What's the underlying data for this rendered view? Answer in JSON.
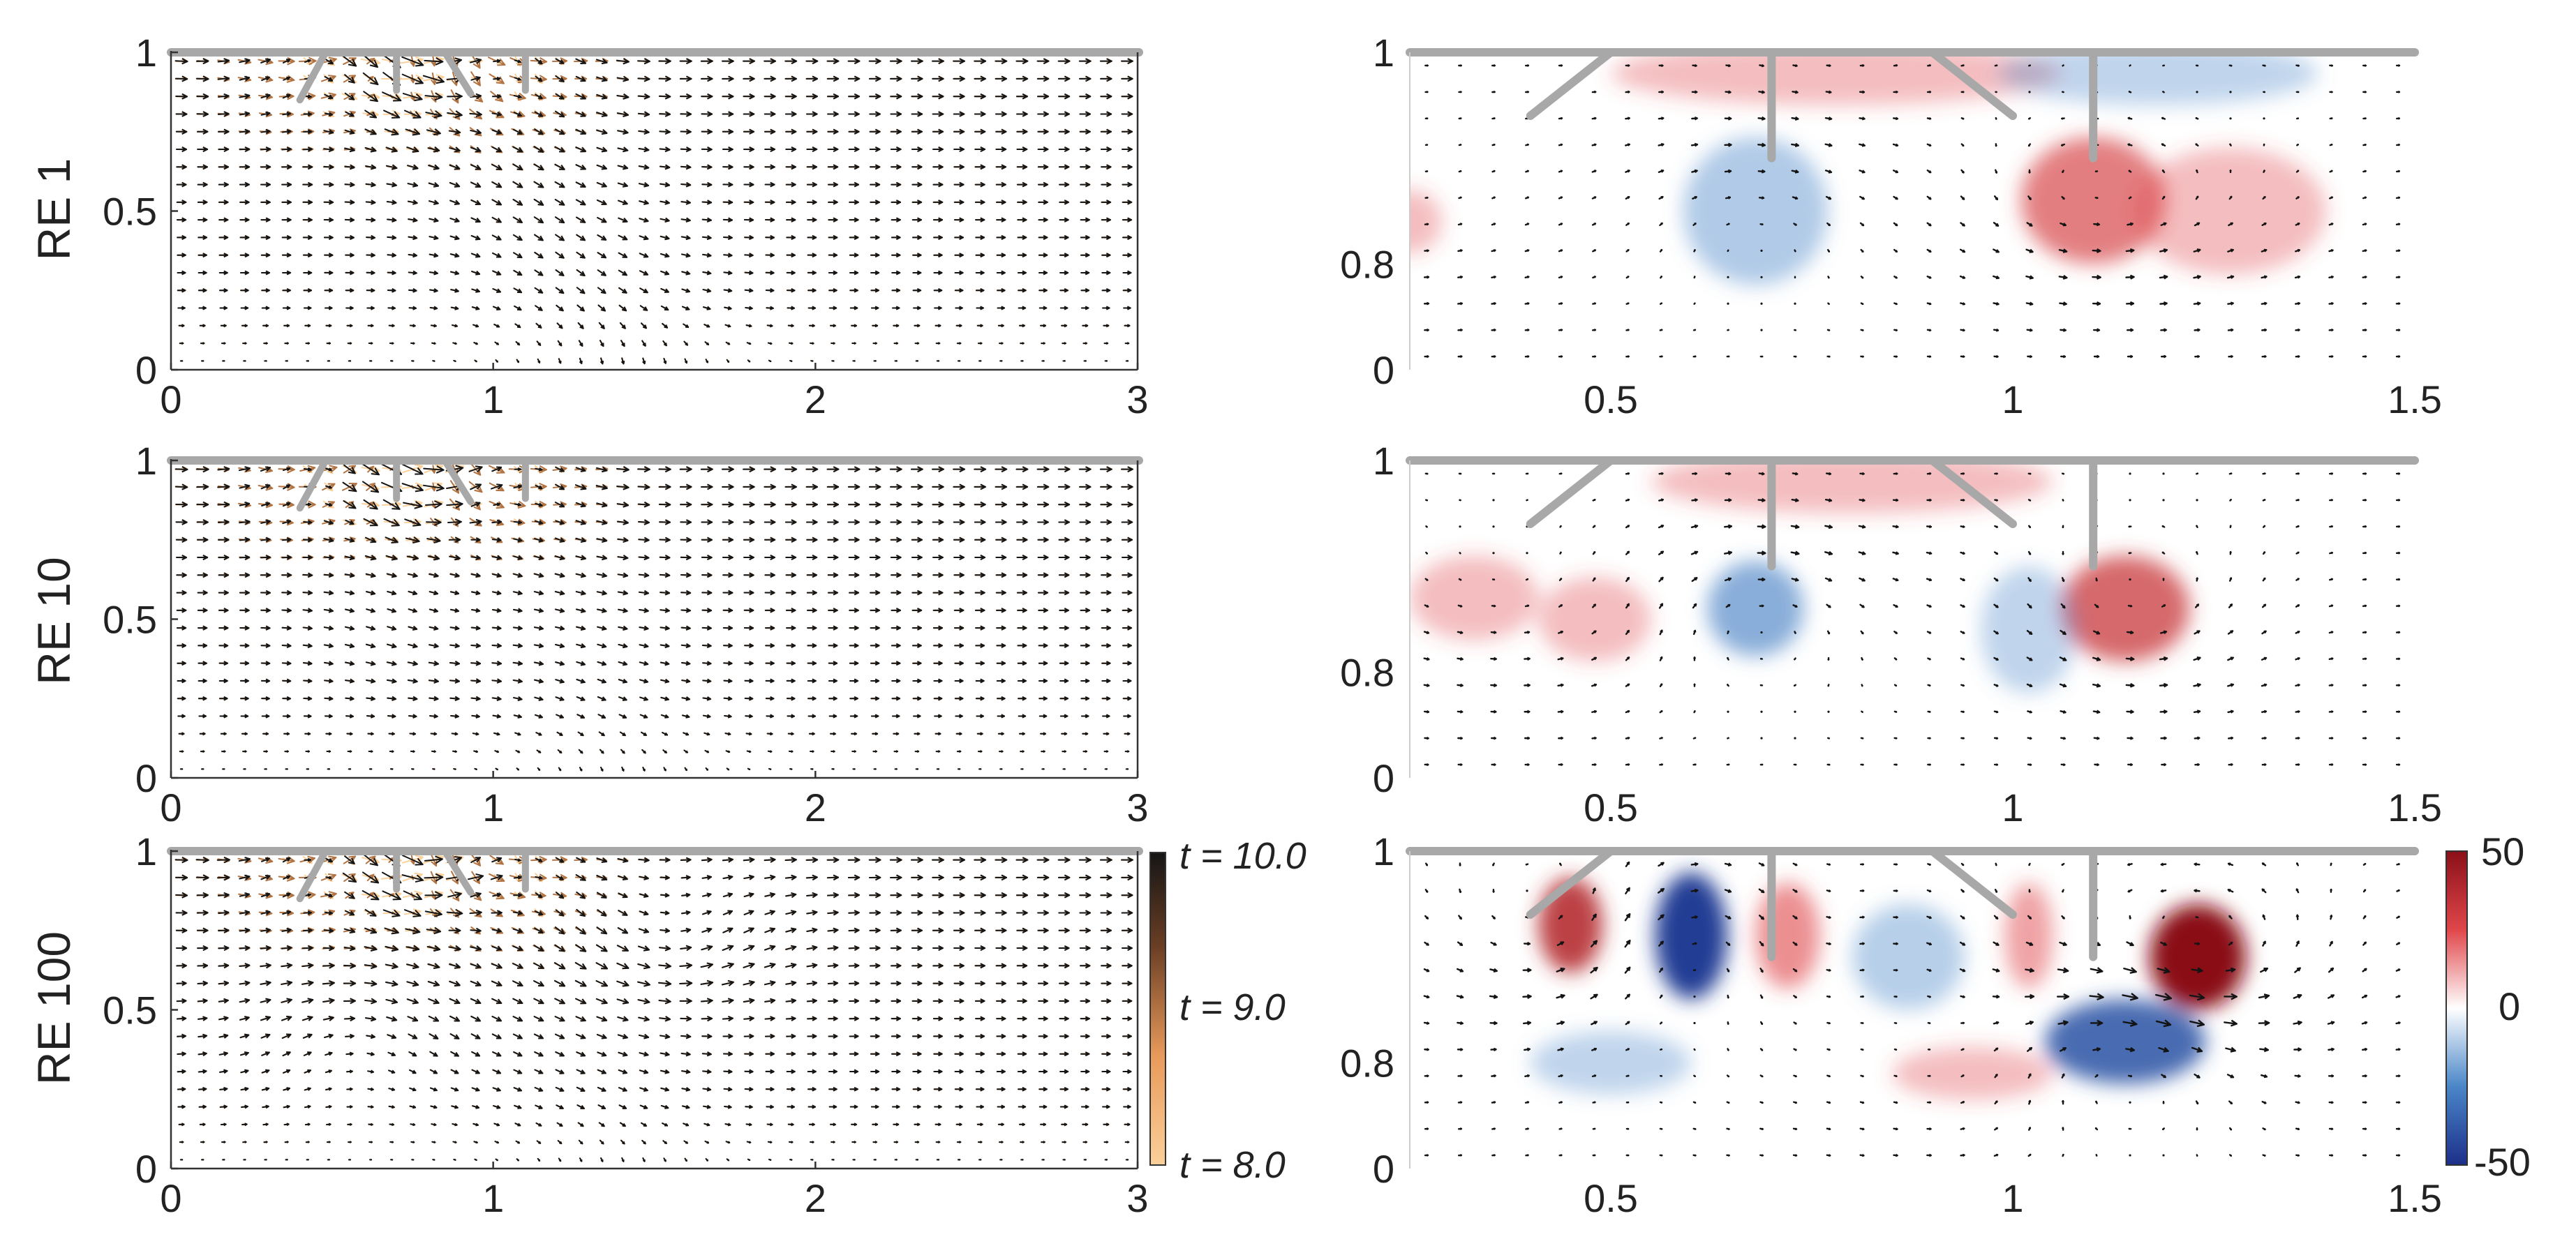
{
  "chart_data": [
    {
      "type": "quiver",
      "row_label": "RE 1",
      "side": "left",
      "xlim": [
        0,
        3
      ],
      "ylim": [
        0,
        1
      ],
      "xticks": [
        "0",
        "1",
        "2",
        "3"
      ],
      "yticks": [
        "0",
        "0.5",
        "1"
      ],
      "color_encoding": "time",
      "flow_regime": "laminar",
      "vortices": []
    },
    {
      "type": "quiver-vorticity",
      "row_label": "RE 1",
      "side": "right",
      "xlim": [
        0.25,
        1.5
      ],
      "ylim": [
        0.7,
        1.0
      ],
      "xticks": [
        "0.5",
        "1",
        "1.5"
      ],
      "yticks": [
        "0",
        "0.8",
        "1"
      ],
      "vortices": [
        {
          "x": 0.68,
          "y": 0.85,
          "strength": -22,
          "rx": 0.09,
          "ry": 0.07
        },
        {
          "x": 1.1,
          "y": 0.86,
          "strength": 34,
          "rx": 0.09,
          "ry": 0.06
        },
        {
          "x": 0.25,
          "y": 0.84,
          "strength": 10,
          "rx": 0.04,
          "ry": 0.03
        },
        {
          "x": 0.78,
          "y": 0.98,
          "strength": 8,
          "rx": 0.28,
          "ry": 0.03
        },
        {
          "x": 1.18,
          "y": 0.98,
          "strength": -8,
          "rx": 0.2,
          "ry": 0.03
        },
        {
          "x": 1.27,
          "y": 0.85,
          "strength": 10,
          "rx": 0.12,
          "ry": 0.06
        }
      ]
    },
    {
      "type": "quiver",
      "row_label": "RE 10",
      "side": "left",
      "xlim": [
        0,
        3
      ],
      "ylim": [
        0,
        1
      ],
      "xticks": [
        "0",
        "1",
        "2",
        "3"
      ],
      "yticks": [
        "0",
        "0.5",
        "1"
      ],
      "color_encoding": "time",
      "flow_regime": "transitional",
      "vortices": [
        {
          "x": 0.85,
          "y": 0.45,
          "strength": 0.6
        }
      ]
    },
    {
      "type": "quiver-vorticity",
      "row_label": "RE 10",
      "side": "right",
      "xlim": [
        0.25,
        1.5
      ],
      "ylim": [
        0.7,
        1.0
      ],
      "xticks": [
        "0.5",
        "1",
        "1.5"
      ],
      "yticks": [
        "0",
        "0.8",
        "1"
      ],
      "vortices": [
        {
          "x": 0.33,
          "y": 0.87,
          "strength": 14,
          "rx": 0.08,
          "ry": 0.04
        },
        {
          "x": 0.68,
          "y": 0.86,
          "strength": -32,
          "rx": 0.06,
          "ry": 0.045
        },
        {
          "x": 1.14,
          "y": 0.86,
          "strength": 38,
          "rx": 0.08,
          "ry": 0.05
        },
        {
          "x": 1.02,
          "y": 0.84,
          "strength": -10,
          "rx": 0.06,
          "ry": 0.06
        },
        {
          "x": 0.48,
          "y": 0.85,
          "strength": 10,
          "rx": 0.07,
          "ry": 0.04
        },
        {
          "x": 0.8,
          "y": 0.98,
          "strength": 6,
          "rx": 0.25,
          "ry": 0.03
        }
      ]
    },
    {
      "type": "quiver",
      "row_label": "RE 100",
      "side": "left",
      "xlim": [
        0,
        3
      ],
      "ylim": [
        0,
        1
      ],
      "xticks": [
        "0",
        "1",
        "2",
        "3"
      ],
      "yticks": [
        "0",
        "0.5",
        "1"
      ],
      "color_encoding": "time",
      "flow_regime": "vortical",
      "vortices": [
        {
          "x": 1.55,
          "y": 0.72,
          "strength": 1.2
        },
        {
          "x": 0.58,
          "y": 0.42,
          "strength": -1.0
        }
      ]
    },
    {
      "type": "quiver-vorticity",
      "row_label": "RE 100",
      "side": "right",
      "xlim": [
        0.25,
        1.5
      ],
      "ylim": [
        0.7,
        1.0
      ],
      "xticks": [
        "0.5",
        "1",
        "1.5"
      ],
      "yticks": [
        "0",
        "0.8",
        "1"
      ],
      "vortices": [
        {
          "x": 0.45,
          "y": 0.93,
          "strength": 45,
          "rx": 0.04,
          "ry": 0.045
        },
        {
          "x": 0.6,
          "y": 0.92,
          "strength": -55,
          "rx": 0.045,
          "ry": 0.06
        },
        {
          "x": 0.72,
          "y": 0.92,
          "strength": 30,
          "rx": 0.04,
          "ry": 0.05
        },
        {
          "x": 0.87,
          "y": 0.9,
          "strength": -20,
          "rx": 0.07,
          "ry": 0.05
        },
        {
          "x": 1.02,
          "y": 0.92,
          "strength": 25,
          "rx": 0.03,
          "ry": 0.05
        },
        {
          "x": 1.23,
          "y": 0.9,
          "strength": 60,
          "rx": 0.06,
          "ry": 0.05
        },
        {
          "x": 1.14,
          "y": 0.82,
          "strength": -45,
          "rx": 0.1,
          "ry": 0.04
        },
        {
          "x": 0.95,
          "y": 0.79,
          "strength": 12,
          "rx": 0.1,
          "ry": 0.025
        },
        {
          "x": 0.5,
          "y": 0.8,
          "strength": -8,
          "rx": 0.1,
          "ry": 0.03
        }
      ]
    }
  ],
  "colorbar_time": {
    "labels": [
      "t = 10.0",
      "t = 9.0",
      "t = 8.0"
    ],
    "colors": [
      "#1a1a1a",
      "#7a4a2a",
      "#f0b070",
      "#fbd0a0"
    ]
  },
  "colorbar_vorticity": {
    "ticks": [
      "50",
      "0",
      "-50"
    ],
    "colors": [
      "#1c2f8a",
      "#4a86c8",
      "#ffffff",
      "#e0464a",
      "#8a1018"
    ]
  },
  "colors": {
    "wall": "#a8a8a8",
    "arrow": "#141414",
    "axis": "#333333"
  }
}
